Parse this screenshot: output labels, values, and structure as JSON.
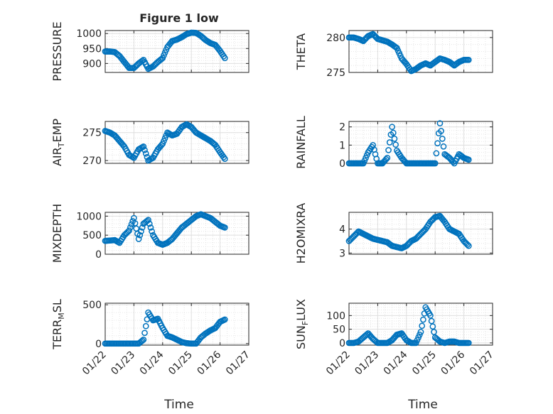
{
  "figure": {
    "title": "Figure 1 low",
    "xlabel": "Time",
    "x_tick_labels": [
      "01/22",
      "01/23",
      "01/24",
      "01/25",
      "01/26",
      "01/27"
    ]
  },
  "colors": {
    "marker": "#0072BD",
    "axis": "#262626",
    "grid": "#DFDFDF",
    "background": "#FFFFFF"
  },
  "chart_data": [
    {
      "type": "scatter",
      "ylabel": "PRESSURE",
      "ylim": [
        870,
        1010
      ],
      "yticks": [
        900,
        950,
        1000
      ],
      "grid": true,
      "x_range": [
        "01/22",
        "01/27"
      ],
      "x": [
        "01/22 00:00",
        "01/22 04:00",
        "01/22 08:00",
        "01/22 12:00",
        "01/22 16:00",
        "01/22 20:00",
        "01/23 00:00",
        "01/23 04:00",
        "01/23 08:00",
        "01/23 12:00",
        "01/23 16:00",
        "01/23 20:00",
        "01/24 00:00",
        "01/24 04:00",
        "01/24 08:00",
        "01/24 12:00",
        "01/24 16:00",
        "01/24 20:00",
        "01/25 00:00",
        "01/25 04:00",
        "01/25 08:00",
        "01/25 12:00",
        "01/25 16:00",
        "01/25 20:00",
        "01/26 00:00",
        "01/26 04:00"
      ],
      "values": [
        940,
        940,
        938,
        925,
        905,
        885,
        885,
        900,
        912,
        882,
        890,
        905,
        918,
        955,
        975,
        980,
        988,
        998,
        1003,
        1002,
        992,
        978,
        968,
        962,
        942,
        918
      ]
    },
    {
      "type": "scatter",
      "ylabel": "THETA",
      "ylim": [
        275,
        281
      ],
      "yticks": [
        275,
        280
      ],
      "grid": true,
      "x_range": [
        "01/22",
        "01/27"
      ],
      "x": [
        "01/22 00:00",
        "01/22 04:00",
        "01/22 08:00",
        "01/22 12:00",
        "01/22 16:00",
        "01/22 20:00",
        "01/23 00:00",
        "01/23 04:00",
        "01/23 08:00",
        "01/23 12:00",
        "01/23 16:00",
        "01/23 20:00",
        "01/24 00:00",
        "01/24 04:00",
        "01/24 08:00",
        "01/24 12:00",
        "01/24 16:00",
        "01/24 20:00",
        "01/25 00:00",
        "01/25 04:00",
        "01/25 08:00",
        "01/25 12:00",
        "01/25 16:00",
        "01/25 20:00",
        "01/26 00:00",
        "01/26 04:00"
      ],
      "values": [
        280,
        280,
        279.8,
        279.5,
        280.2,
        280.5,
        279.8,
        279.6,
        279.4,
        279,
        278.5,
        277,
        276.2,
        275.2,
        275.5,
        276,
        276.3,
        276,
        276.5,
        277,
        276.8,
        276.5,
        276,
        276.5,
        276.8,
        276.8
      ]
    },
    {
      "type": "scatter",
      "ylabel": "AIR_TEMP",
      "ylim": [
        269.5,
        277
      ],
      "yticks": [
        270,
        275
      ],
      "grid": true,
      "x_range": [
        "01/22",
        "01/27"
      ],
      "x": [
        "01/22 00:00",
        "01/22 04:00",
        "01/22 08:00",
        "01/22 12:00",
        "01/22 16:00",
        "01/22 20:00",
        "01/23 00:00",
        "01/23 04:00",
        "01/23 08:00",
        "01/23 12:00",
        "01/23 16:00",
        "01/23 20:00",
        "01/24 00:00",
        "01/24 04:00",
        "01/24 08:00",
        "01/24 12:00",
        "01/24 16:00",
        "01/24 20:00",
        "01/25 00:00",
        "01/25 04:00",
        "01/25 08:00",
        "01/25 12:00",
        "01/25 16:00",
        "01/25 20:00",
        "01/26 00:00",
        "01/26 04:00"
      ],
      "values": [
        275.3,
        275,
        274.5,
        273.5,
        272.5,
        271,
        270.5,
        272,
        272.5,
        270,
        270.5,
        272,
        273,
        275,
        274.5,
        274.8,
        276,
        276.5,
        276,
        275,
        274.5,
        274,
        273.5,
        272.8,
        271.5,
        270.3
      ]
    },
    {
      "type": "scatter",
      "ylabel": "RAINFALL",
      "ylim": [
        0,
        2.3
      ],
      "yticks": [
        0,
        1,
        2
      ],
      "grid": true,
      "x_range": [
        "01/22",
        "01/27"
      ],
      "x": [
        "01/22 00:00",
        "01/22 04:00",
        "01/22 08:00",
        "01/22 12:00",
        "01/22 16:00",
        "01/22 20:00",
        "01/23 00:00",
        "01/23 04:00",
        "01/23 08:00",
        "01/23 12:00",
        "01/23 16:00",
        "01/23 20:00",
        "01/24 00:00",
        "01/24 04:00",
        "01/24 08:00",
        "01/24 12:00",
        "01/24 16:00",
        "01/24 20:00",
        "01/25 00:00",
        "01/25 04:00",
        "01/25 08:00",
        "01/25 12:00",
        "01/25 16:00",
        "01/25 20:00",
        "01/26 00:00",
        "01/26 04:00"
      ],
      "values": [
        0,
        0,
        0,
        0,
        0.6,
        1,
        0,
        0,
        0.3,
        2,
        0.7,
        0.3,
        0,
        0,
        0,
        0,
        0,
        0,
        0,
        2.2,
        0.5,
        0.3,
        0,
        0.5,
        0.3,
        0.2
      ]
    },
    {
      "type": "scatter",
      "ylabel": "MIXDEPTH",
      "ylim": [
        0,
        1100
      ],
      "yticks": [
        0,
        500,
        1000
      ],
      "grid": true,
      "x_range": [
        "01/22",
        "01/27"
      ],
      "x": [
        "01/22 00:00",
        "01/22 04:00",
        "01/22 08:00",
        "01/22 12:00",
        "01/22 16:00",
        "01/22 20:00",
        "01/23 00:00",
        "01/23 04:00",
        "01/23 08:00",
        "01/23 12:00",
        "01/23 16:00",
        "01/23 20:00",
        "01/24 00:00",
        "01/24 04:00",
        "01/24 08:00",
        "01/24 12:00",
        "01/24 16:00",
        "01/24 20:00",
        "01/25 00:00",
        "01/25 04:00",
        "01/25 08:00",
        "01/25 12:00",
        "01/25 16:00",
        "01/25 20:00",
        "01/26 00:00",
        "01/26 04:00"
      ],
      "values": [
        350,
        360,
        370,
        300,
        500,
        620,
        950,
        400,
        800,
        900,
        500,
        300,
        250,
        300,
        400,
        550,
        700,
        800,
        900,
        1000,
        1050,
        1000,
        950,
        850,
        750,
        700
      ]
    },
    {
      "type": "scatter",
      "ylabel": "H2OMIXRA",
      "ylim": [
        2.95,
        4.7
      ],
      "yticks": [
        3,
        4
      ],
      "grid": true,
      "x_range": [
        "01/22",
        "01/27"
      ],
      "x": [
        "01/22 00:00",
        "01/22 04:00",
        "01/22 08:00",
        "01/22 12:00",
        "01/22 16:00",
        "01/22 20:00",
        "01/23 00:00",
        "01/23 04:00",
        "01/23 08:00",
        "01/23 12:00",
        "01/23 16:00",
        "01/23 20:00",
        "01/24 00:00",
        "01/24 04:00",
        "01/24 08:00",
        "01/24 12:00",
        "01/24 16:00",
        "01/24 20:00",
        "01/25 00:00",
        "01/25 04:00",
        "01/25 08:00",
        "01/25 12:00",
        "01/25 16:00",
        "01/25 20:00",
        "01/26 00:00",
        "01/26 04:00"
      ],
      "values": [
        3.5,
        3.7,
        3.9,
        3.8,
        3.7,
        3.6,
        3.55,
        3.5,
        3.45,
        3.3,
        3.25,
        3.2,
        3.3,
        3.5,
        3.6,
        3.8,
        4.0,
        4.3,
        4.5,
        4.55,
        4.3,
        4.0,
        3.9,
        3.8,
        3.5,
        3.3
      ]
    },
    {
      "type": "scatter",
      "ylabel": "TERR_MSL",
      "ylim": [
        -20,
        520
      ],
      "yticks": [
        0,
        500
      ],
      "grid": true,
      "x_range": [
        "01/22",
        "01/27"
      ],
      "x": [
        "01/22 00:00",
        "01/22 04:00",
        "01/22 08:00",
        "01/22 12:00",
        "01/22 16:00",
        "01/22 20:00",
        "01/23 00:00",
        "01/23 04:00",
        "01/23 08:00",
        "01/23 12:00",
        "01/23 16:00",
        "01/23 20:00",
        "01/24 00:00",
        "01/24 04:00",
        "01/24 08:00",
        "01/24 12:00",
        "01/24 16:00",
        "01/24 20:00",
        "01/25 00:00",
        "01/25 04:00",
        "01/25 08:00",
        "01/25 12:00",
        "01/25 16:00",
        "01/25 20:00",
        "01/26 00:00",
        "01/26 04:00"
      ],
      "values": [
        0,
        0,
        0,
        0,
        0,
        0,
        0,
        0,
        50,
        400,
        300,
        320,
        200,
        100,
        80,
        50,
        20,
        5,
        0,
        0,
        80,
        130,
        170,
        200,
        280,
        310
      ]
    },
    {
      "type": "scatter",
      "ylabel": "SUN_FLUX",
      "ylim": [
        -8,
        145
      ],
      "yticks": [
        0,
        50,
        100
      ],
      "grid": true,
      "x_range": [
        "01/22",
        "01/27"
      ],
      "x": [
        "01/22 00:00",
        "01/22 04:00",
        "01/22 08:00",
        "01/22 12:00",
        "01/22 16:00",
        "01/22 20:00",
        "01/23 00:00",
        "01/23 04:00",
        "01/23 08:00",
        "01/23 12:00",
        "01/23 16:00",
        "01/23 20:00",
        "01/24 00:00",
        "01/24 04:00",
        "01/24 08:00",
        "01/24 12:00",
        "01/24 16:00",
        "01/24 20:00",
        "01/25 00:00",
        "01/25 04:00",
        "01/25 08:00",
        "01/25 12:00",
        "01/25 16:00",
        "01/25 20:00",
        "01/26 00:00",
        "01/26 04:00"
      ],
      "values": [
        0,
        0,
        5,
        20,
        35,
        15,
        0,
        0,
        0,
        10,
        30,
        35,
        10,
        0,
        0,
        40,
        130,
        100,
        20,
        5,
        0,
        5,
        5,
        0,
        0,
        0
      ]
    }
  ]
}
